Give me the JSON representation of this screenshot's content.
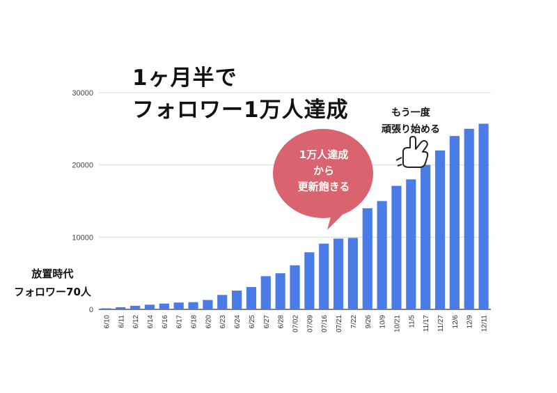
{
  "headline": {
    "line1": "1ヶ月半で",
    "line2": "フォロワー1万人達成"
  },
  "annotations": {
    "left": [
      "放置時代",
      "フォロワー70人"
    ],
    "bubble": [
      "1万人達成",
      "から",
      "更新飽きる"
    ],
    "right": [
      "もう一度",
      "頑張り始める"
    ]
  },
  "icons": {
    "pointer": "pointing-hand-icon"
  },
  "colors": {
    "bar": "#4a7be6",
    "bubble": "#d9636f",
    "grid": "#d9d9d9"
  },
  "chart_data": {
    "type": "bar",
    "categories": [
      "6/10",
      "6/11",
      "6/12",
      "6/14",
      "6/16",
      "6/17",
      "6/18",
      "6/20",
      "6/23",
      "6/24",
      "6/25",
      "6/27",
      "6/28",
      "07/02",
      "07/09",
      "07/16",
      "07/21",
      "7/22",
      "9/26",
      "10/9",
      "10/21",
      "11/5",
      "11/17",
      "11/27",
      "12/6",
      "12/9",
      "12/11"
    ],
    "values": [
      150,
      300,
      500,
      650,
      800,
      950,
      1000,
      1300,
      2000,
      2600,
      3100,
      4600,
      5000,
      6100,
      7900,
      9100,
      9800,
      9900,
      14000,
      15000,
      17100,
      18000,
      20000,
      22000,
      24000,
      25000,
      25700
    ],
    "yticks": [
      0,
      10000,
      20000,
      30000
    ],
    "ylim": [
      0,
      31000
    ],
    "grid": true,
    "legend": "none"
  }
}
